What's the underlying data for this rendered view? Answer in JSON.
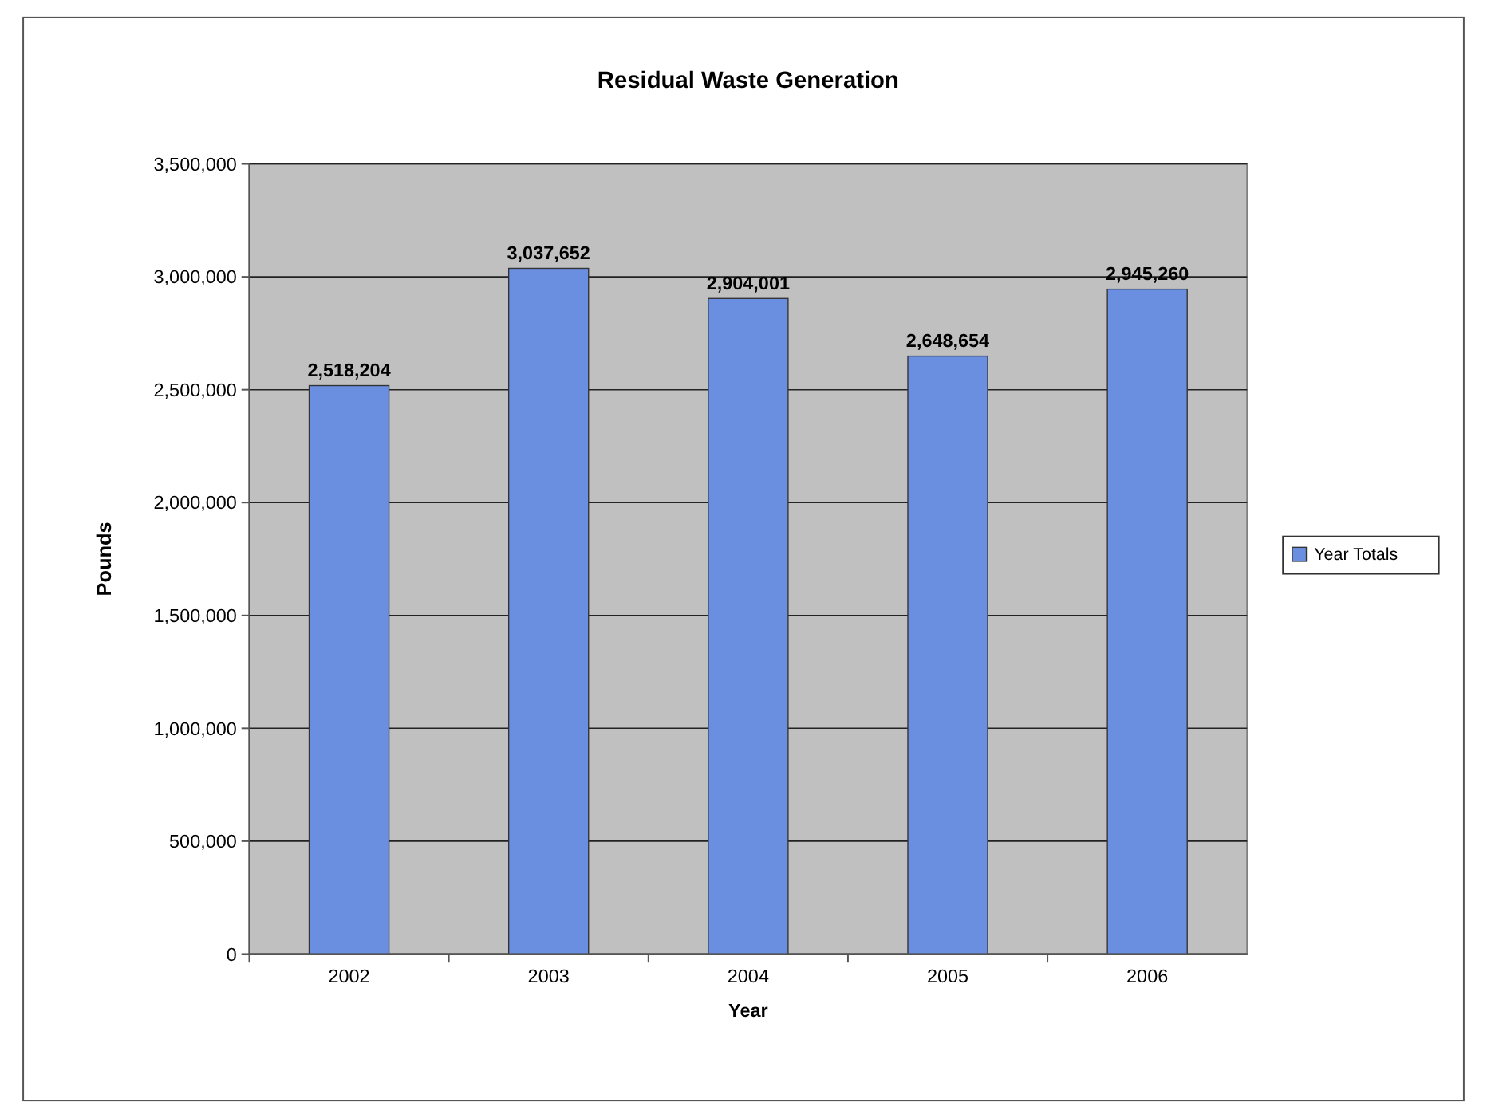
{
  "chart_data": {
    "type": "bar",
    "title": "Residual Waste Generation",
    "xlabel": "Year",
    "ylabel": "Pounds",
    "categories": [
      "2002",
      "2003",
      "2004",
      "2005",
      "2006"
    ],
    "series": [
      {
        "name": "Year Totals",
        "color": "#6b8fe0",
        "values": [
          2518204,
          3037652,
          2904001,
          2648654,
          2945260
        ],
        "value_labels": [
          "2,518,204",
          "3,037,652",
          "2,904,001",
          "2,648,654",
          "2,945,260"
        ]
      }
    ],
    "ylim": [
      0,
      3500000
    ],
    "yticks": [
      0,
      {
        "value": 500000,
        "label": "500,000"
      },
      {
        "value": 1000000,
        "label": "1,000,000"
      },
      {
        "value": 1500000,
        "label": "1,500,000"
      },
      {
        "value": 2000000,
        "label": "2,000,000"
      },
      {
        "value": 2500000,
        "label": "2,500,000"
      },
      {
        "value": 3000000,
        "label": "3,000,000"
      },
      {
        "value": 3500000,
        "label": "3,500,000"
      }
    ],
    "grid": "y",
    "legend": "right"
  }
}
